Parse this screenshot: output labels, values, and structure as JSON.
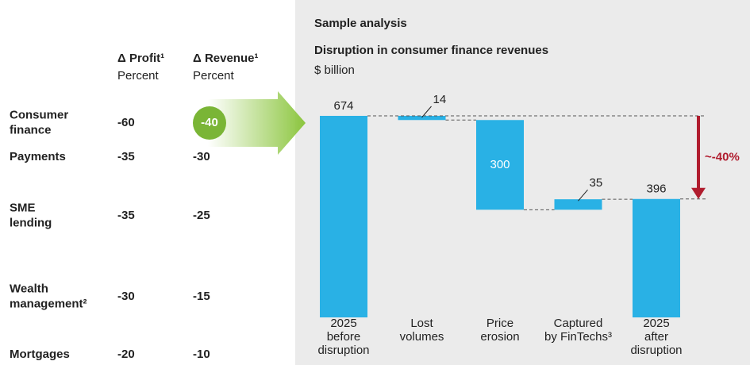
{
  "table": {
    "headers": [
      {
        "title": "Δ Profit¹",
        "unit": "Percent"
      },
      {
        "title": "Δ Revenue¹",
        "unit": "Percent"
      }
    ],
    "rows": [
      {
        "label": [
          "Consumer",
          "finance"
        ],
        "values": [
          -60,
          -40
        ]
      },
      {
        "label": [
          "Payments"
        ],
        "values": [
          -35,
          -30
        ]
      },
      {
        "label": [
          "SME",
          "lending"
        ],
        "values": [
          -35,
          -25
        ]
      },
      {
        "label": [
          "Wealth",
          "management²"
        ],
        "values": [
          -30,
          -15
        ]
      },
      {
        "label": [
          "Mortgages"
        ],
        "values": [
          -20,
          -10
        ]
      }
    ]
  },
  "chart_data": {
    "type": "waterfall",
    "tag": "Sample analysis",
    "title": "Disruption in consumer finance revenues",
    "subtitle": "$ billion",
    "categories": [
      [
        "2025",
        "before",
        "disruption"
      ],
      [
        "Lost",
        "volumes"
      ],
      [
        "Price",
        "erosion"
      ],
      [
        "Captured",
        "by FinTechs³"
      ],
      [
        "2025",
        "after",
        "disruption"
      ]
    ],
    "measure": [
      "total",
      "relative",
      "relative",
      "relative",
      "total"
    ],
    "values": [
      674,
      -14,
      -300,
      35,
      396
    ],
    "value_labels": [
      "674",
      "14",
      "300",
      "35",
      "396"
    ],
    "color": "#29b1e5",
    "annotation": "~-40%",
    "annotation_color": "#b01c2e"
  }
}
